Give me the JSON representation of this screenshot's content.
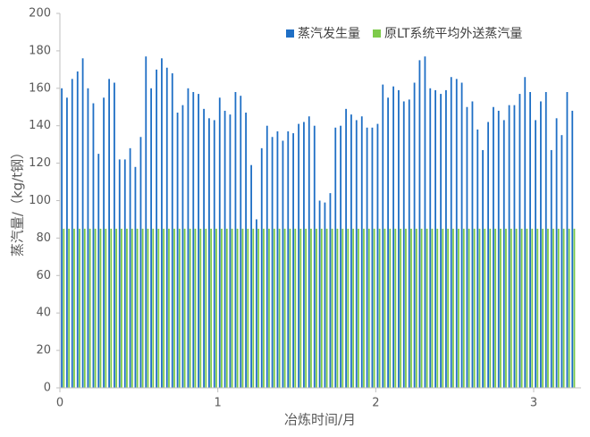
{
  "chart_data": {
    "type": "bar",
    "x_label": "冶炼时间/月",
    "y_label": "蒸汽量/（kg/t钢）",
    "x": [
      0.017,
      0.05,
      0.083,
      0.117,
      0.15,
      0.183,
      0.217,
      0.25,
      0.283,
      0.317,
      0.35,
      0.383,
      0.417,
      0.45,
      0.483,
      0.517,
      0.55,
      0.583,
      0.617,
      0.65,
      0.683,
      0.717,
      0.75,
      0.783,
      0.817,
      0.85,
      0.883,
      0.917,
      0.95,
      0.983,
      1.017,
      1.05,
      1.083,
      1.117,
      1.15,
      1.183,
      1.217,
      1.25,
      1.283,
      1.317,
      1.35,
      1.383,
      1.417,
      1.45,
      1.483,
      1.517,
      1.55,
      1.583,
      1.617,
      1.65,
      1.683,
      1.717,
      1.75,
      1.783,
      1.817,
      1.85,
      1.883,
      1.917,
      1.95,
      1.983,
      2.017,
      2.05,
      2.083,
      2.117,
      2.15,
      2.183,
      2.217,
      2.25,
      2.283,
      2.317,
      2.35,
      2.383,
      2.417,
      2.45,
      2.483,
      2.517,
      2.55,
      2.583,
      2.617,
      2.65,
      2.683,
      2.717,
      2.75,
      2.783,
      2.817,
      2.85,
      2.883,
      2.917,
      2.95,
      2.983,
      3.017,
      3.05,
      3.083,
      3.117,
      3.15,
      3.183,
      3.217,
      3.25
    ],
    "series": [
      {
        "name": "蒸汽发生量",
        "color": "#1f6fc5",
        "values": [
          160,
          155,
          165,
          169,
          176,
          160,
          152,
          125,
          155,
          165,
          163,
          122,
          122,
          128,
          118,
          134,
          177,
          160,
          170,
          176,
          171,
          168,
          147,
          151,
          160,
          158,
          157,
          149,
          144,
          143,
          155,
          148,
          146,
          158,
          156,
          147,
          119,
          90,
          128,
          140,
          134,
          137,
          132,
          137,
          136,
          141,
          142,
          145,
          140,
          100,
          99,
          104,
          139,
          140,
          149,
          146,
          143,
          145,
          139,
          139,
          141,
          162,
          155,
          161,
          159,
          153,
          154,
          163,
          175,
          177,
          160,
          159,
          157,
          159,
          166,
          165,
          163,
          150,
          153,
          138,
          127,
          142,
          150,
          148,
          143,
          151,
          151,
          157,
          166,
          158,
          143,
          153,
          158,
          127,
          144,
          135,
          158,
          148
        ]
      },
      {
        "name": "原LT系统平均外送蒸汽量",
        "color": "#7ecb4a",
        "values": [
          85,
          85,
          85,
          85,
          85,
          85,
          85,
          85,
          85,
          85,
          85,
          85,
          85,
          85,
          85,
          85,
          85,
          85,
          85,
          85,
          85,
          85,
          85,
          85,
          85,
          85,
          85,
          85,
          85,
          85,
          85,
          85,
          85,
          85,
          85,
          85,
          85,
          85,
          85,
          85,
          85,
          85,
          85,
          85,
          85,
          85,
          85,
          85,
          85,
          85,
          85,
          85,
          85,
          85,
          85,
          85,
          85,
          85,
          85,
          85,
          85,
          85,
          85,
          85,
          85,
          85,
          85,
          85,
          85,
          85,
          85,
          85,
          85,
          85,
          85,
          85,
          85,
          85,
          85,
          85,
          85,
          85,
          85,
          85,
          85,
          85,
          85,
          85,
          85,
          85,
          85,
          85,
          85,
          85,
          85,
          85,
          85,
          85
        ]
      }
    ],
    "xlim": [
      0,
      3.3
    ],
    "xticks": [
      0,
      1,
      2,
      3
    ],
    "ylim": [
      0,
      200
    ],
    "yticks": [
      0,
      20,
      40,
      60,
      80,
      100,
      120,
      140,
      160,
      180,
      200
    ],
    "legend": "top-right"
  }
}
